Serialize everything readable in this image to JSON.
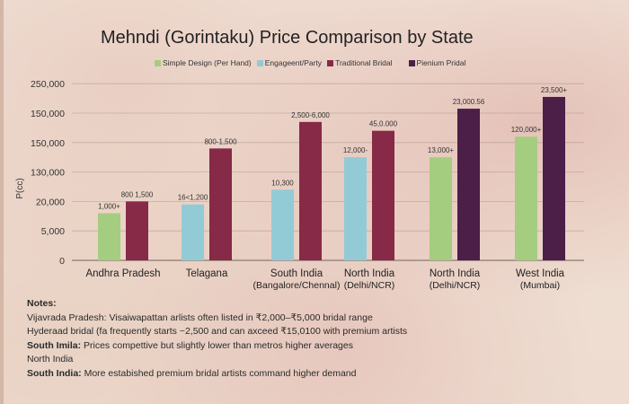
{
  "chart_data": {
    "type": "bar",
    "title": "Mehndi (Gorintaku) Price Comparison by State",
    "ylabel": "P(cc)",
    "y_tick_labels": [
      "0",
      "5,000",
      "20,000",
      "130,000",
      "150,000",
      "150,000",
      "250,000"
    ],
    "y_scale_note": "values expressed in tick-index units (gridline positions), because the printed tick labels are not monotonic",
    "ylim": [
      0,
      6
    ],
    "grid": true,
    "legend_position": "top",
    "categories": [
      "Andhra Pradesh",
      "Telagana",
      "South India (Bangalore/Chennal)",
      "North India (Delhi/NCR)",
      "North India (Delhi/NCR)",
      "West India (Mumbai)"
    ],
    "category_lines": [
      [
        "Andhra Pradesh"
      ],
      [
        "Telagana"
      ],
      [
        "South India",
        "(Bangalore/Chennal)"
      ],
      [
        "North India",
        "(Delhi/NCR)"
      ],
      [
        "North India",
        "(Delhi/NCR)"
      ],
      [
        "West India",
        "(Mumbai)"
      ]
    ],
    "series": [
      {
        "name": "Simple Design (Per Hand)",
        "color": "#a5cd7f"
      },
      {
        "name": "Engageent/Party",
        "color": "#92cbd6"
      },
      {
        "name": "Traditional Bridal",
        "color": "#862a47"
      },
      {
        "name": "Pienium Pridal",
        "color": "#4b1f47"
      }
    ],
    "bars": [
      {
        "category": 0,
        "series": 0,
        "value": 1.6,
        "label": "1,000+"
      },
      {
        "category": 0,
        "series": 2,
        "value": 2.0,
        "label": "800 1,500"
      },
      {
        "category": 1,
        "series": 1,
        "value": 1.9,
        "label": "16<1,200"
      },
      {
        "category": 1,
        "series": 2,
        "value": 3.8,
        "label": "800-1,500"
      },
      {
        "category": 2,
        "series": 1,
        "value": 2.4,
        "label": "10,300"
      },
      {
        "category": 2,
        "series": 2,
        "value": 4.7,
        "label": "2,500-6,000"
      },
      {
        "category": 3,
        "series": 1,
        "value": 3.5,
        "label": "12,000-"
      },
      {
        "category": 3,
        "series": 2,
        "value": 4.4,
        "label": "45,0.000"
      },
      {
        "category": 4,
        "series": 0,
        "value": 3.5,
        "label": "13,000+"
      },
      {
        "category": 4,
        "series": 3,
        "value": 5.15,
        "label": "23,000.56"
      },
      {
        "category": 5,
        "series": 0,
        "value": 4.2,
        "label": "120,000+"
      },
      {
        "category": 5,
        "series": 3,
        "value": 5.55,
        "label": "23,500+"
      }
    ]
  },
  "notes": {
    "heading": "Notes:",
    "lines": [
      {
        "bold": "",
        "text": "Vijavrada Pradesh: Visaiwapattan arlists often listed in ₹2,000–₹5,000 bridal range"
      },
      {
        "bold": "",
        "text": "Hyderaad bridal (fa frequently starts ~2,500  and can axceed ₹15,0100 with premium artists"
      },
      {
        "bold": "South Imila:",
        "text": "  Prices compettive but slightly lower than metros higher averages"
      },
      {
        "bold": "",
        "text": "North India"
      },
      {
        "bold": "South India:",
        "text": " More estabished premium bridal artists command higher demand"
      }
    ]
  }
}
